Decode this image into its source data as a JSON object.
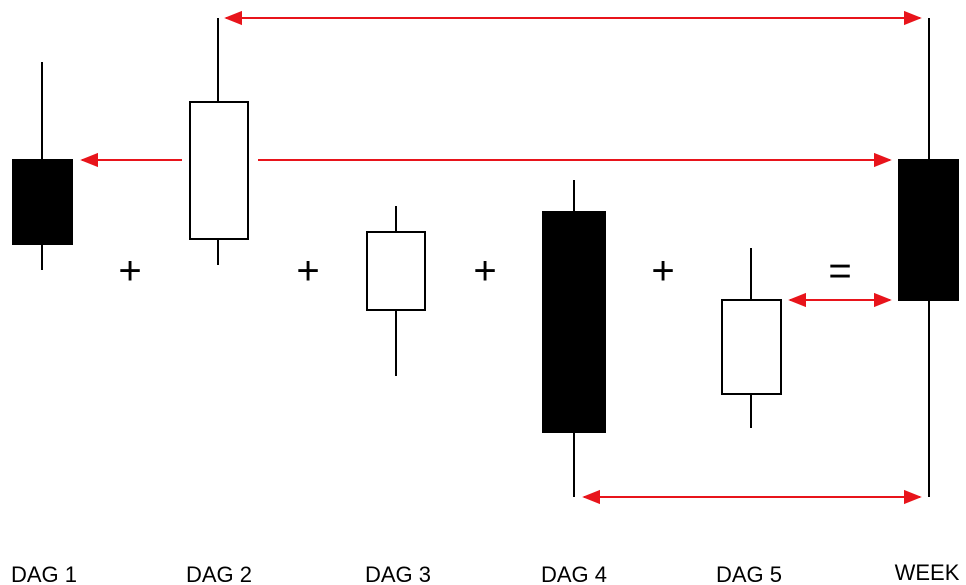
{
  "diagram": {
    "colors": {
      "ink": "#000000",
      "arrow": "#e8141b",
      "paper": "#ffffff"
    },
    "operators": [
      "+",
      "+",
      "+",
      "+",
      "="
    ],
    "candles": [
      {
        "label": "DAG 1",
        "type": "bearish"
      },
      {
        "label": "DAG 2",
        "type": "bullish"
      },
      {
        "label": "DAG 3",
        "type": "bullish"
      },
      {
        "label": "DAG 4",
        "type": "bearish"
      },
      {
        "label": "DAG 5",
        "type": "bullish"
      },
      {
        "label": "WEEK",
        "type": "bearish"
      }
    ]
  }
}
